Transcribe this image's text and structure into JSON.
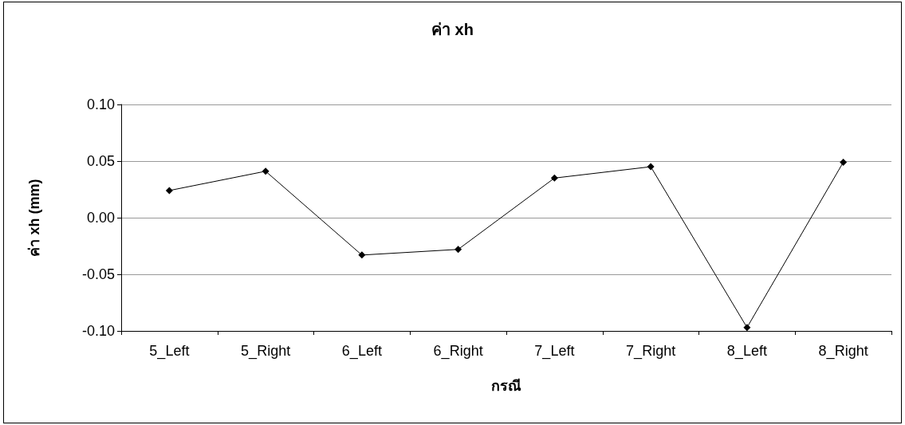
{
  "chart_data": {
    "type": "line",
    "title": "ค่า xh",
    "xlabel": "กรณี",
    "ylabel": "ค่า xh (mm)",
    "categories": [
      "5_Left",
      "5_Right",
      "6_Left",
      "6_Right",
      "7_Left",
      "7_Right",
      "8_Left",
      "8_Right"
    ],
    "series": [
      {
        "color": "#000000",
        "values": [
          0.024,
          0.041,
          -0.033,
          -0.028,
          0.035,
          0.045,
          -0.097,
          0.049
        ]
      }
    ],
    "ylim": [
      -0.1,
      0.1
    ],
    "yticks": [
      {
        "value": -0.1,
        "label": "-0.10"
      },
      {
        "value": -0.05,
        "label": "-0.05"
      },
      {
        "value": 0,
        "label": "0.00"
      },
      {
        "value": 0.05,
        "label": "0.05"
      },
      {
        "value": 0.1,
        "label": "0.10"
      }
    ],
    "grid": "y",
    "marker": "diamond",
    "line_style": "solid"
  }
}
